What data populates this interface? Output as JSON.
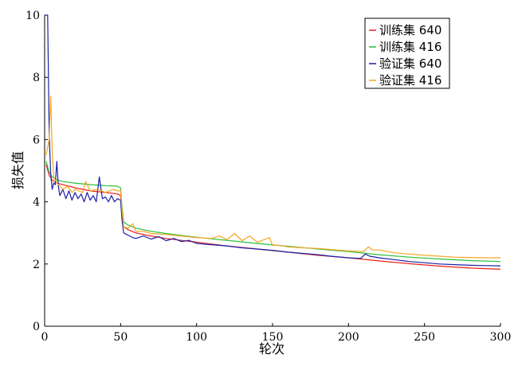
{
  "chart_data": {
    "type": "line",
    "xlabel": "轮次",
    "ylabel": "损失值",
    "xlim": [
      0,
      300
    ],
    "ylim": [
      0,
      10
    ],
    "x_ticks": [
      0,
      50,
      100,
      150,
      200,
      250,
      300
    ],
    "y_ticks": [
      0,
      2,
      4,
      6,
      8,
      10
    ],
    "grid": false,
    "legend_position": "top-right",
    "series": [
      {
        "name": "训练集 640",
        "color": "#e8221b",
        "points": [
          [
            1,
            5.2
          ],
          [
            3,
            4.85
          ],
          [
            5,
            4.7
          ],
          [
            8,
            4.6
          ],
          [
            12,
            4.55
          ],
          [
            20,
            4.45
          ],
          [
            30,
            4.35
          ],
          [
            40,
            4.3
          ],
          [
            48,
            4.25
          ],
          [
            50,
            4.2
          ],
          [
            51,
            3.6
          ],
          [
            52,
            3.2
          ],
          [
            55,
            3.1
          ],
          [
            60,
            3.0
          ],
          [
            70,
            2.9
          ],
          [
            80,
            2.82
          ],
          [
            90,
            2.76
          ],
          [
            100,
            2.7
          ],
          [
            120,
            2.58
          ],
          [
            140,
            2.48
          ],
          [
            160,
            2.38
          ],
          [
            180,
            2.28
          ],
          [
            200,
            2.2
          ],
          [
            220,
            2.1
          ],
          [
            240,
            2.01
          ],
          [
            260,
            1.93
          ],
          [
            280,
            1.87
          ],
          [
            300,
            1.83
          ]
        ]
      },
      {
        "name": "训练集 416",
        "color": "#2bbf3a",
        "points": [
          [
            1,
            5.3
          ],
          [
            3,
            4.95
          ],
          [
            5,
            4.8
          ],
          [
            8,
            4.7
          ],
          [
            12,
            4.65
          ],
          [
            20,
            4.6
          ],
          [
            30,
            4.55
          ],
          [
            40,
            4.52
          ],
          [
            48,
            4.5
          ],
          [
            50,
            4.45
          ],
          [
            51,
            3.8
          ],
          [
            52,
            3.35
          ],
          [
            55,
            3.25
          ],
          [
            60,
            3.15
          ],
          [
            70,
            3.05
          ],
          [
            80,
            2.98
          ],
          [
            90,
            2.92
          ],
          [
            100,
            2.86
          ],
          [
            120,
            2.76
          ],
          [
            140,
            2.66
          ],
          [
            160,
            2.57
          ],
          [
            180,
            2.48
          ],
          [
            200,
            2.4
          ],
          [
            220,
            2.3
          ],
          [
            240,
            2.22
          ],
          [
            260,
            2.16
          ],
          [
            280,
            2.11
          ],
          [
            300,
            2.08
          ]
        ]
      },
      {
        "name": "验证集 640",
        "color": "#1c1fa8",
        "points": [
          [
            1,
            10
          ],
          [
            2,
            10
          ],
          [
            3,
            6.2
          ],
          [
            4,
            4.9
          ],
          [
            5,
            4.4
          ],
          [
            6,
            4.6
          ],
          [
            7,
            4.55
          ],
          [
            8,
            5.3
          ],
          [
            9,
            4.5
          ],
          [
            10,
            4.2
          ],
          [
            12,
            4.4
          ],
          [
            14,
            4.1
          ],
          [
            16,
            4.35
          ],
          [
            18,
            4.05
          ],
          [
            20,
            4.3
          ],
          [
            22,
            4.1
          ],
          [
            24,
            4.25
          ],
          [
            26,
            4.0
          ],
          [
            28,
            4.3
          ],
          [
            30,
            4.05
          ],
          [
            32,
            4.2
          ],
          [
            34,
            4.0
          ],
          [
            36,
            4.8
          ],
          [
            38,
            4.1
          ],
          [
            40,
            4.15
          ],
          [
            42,
            4.0
          ],
          [
            44,
            4.2
          ],
          [
            46,
            4.0
          ],
          [
            48,
            4.1
          ],
          [
            50,
            4.05
          ],
          [
            51,
            3.4
          ],
          [
            52,
            3.0
          ],
          [
            54,
            2.95
          ],
          [
            56,
            2.9
          ],
          [
            58,
            2.85
          ],
          [
            60,
            2.82
          ],
          [
            65,
            2.9
          ],
          [
            70,
            2.8
          ],
          [
            75,
            2.88
          ],
          [
            80,
            2.75
          ],
          [
            85,
            2.82
          ],
          [
            90,
            2.72
          ],
          [
            95,
            2.76
          ],
          [
            100,
            2.66
          ],
          [
            110,
            2.62
          ],
          [
            120,
            2.58
          ],
          [
            130,
            2.52
          ],
          [
            140,
            2.48
          ],
          [
            150,
            2.44
          ],
          [
            160,
            2.38
          ],
          [
            170,
            2.34
          ],
          [
            180,
            2.3
          ],
          [
            190,
            2.24
          ],
          [
            200,
            2.2
          ],
          [
            208,
            2.18
          ],
          [
            211,
            2.32
          ],
          [
            214,
            2.25
          ],
          [
            220,
            2.2
          ],
          [
            230,
            2.14
          ],
          [
            240,
            2.08
          ],
          [
            250,
            2.04
          ],
          [
            260,
            2.0
          ],
          [
            270,
            1.98
          ],
          [
            280,
            1.96
          ],
          [
            290,
            1.95
          ],
          [
            300,
            1.94
          ]
        ]
      },
      {
        "name": "验证集 416",
        "color": "#f5a623",
        "points": [
          [
            1,
            5.5
          ],
          [
            3,
            6.0
          ],
          [
            4,
            7.4
          ],
          [
            5,
            5.6
          ],
          [
            6,
            4.8
          ],
          [
            8,
            4.6
          ],
          [
            10,
            4.5
          ],
          [
            12,
            4.4
          ],
          [
            15,
            4.5
          ],
          [
            18,
            4.3
          ],
          [
            20,
            4.4
          ],
          [
            25,
            4.3
          ],
          [
            27,
            4.65
          ],
          [
            30,
            4.35
          ],
          [
            35,
            4.4
          ],
          [
            40,
            4.3
          ],
          [
            45,
            4.4
          ],
          [
            48,
            4.35
          ],
          [
            50,
            4.35
          ],
          [
            51,
            3.7
          ],
          [
            52,
            3.2
          ],
          [
            55,
            3.15
          ],
          [
            58,
            3.3
          ],
          [
            60,
            3.05
          ],
          [
            65,
            3.05
          ],
          [
            70,
            2.98
          ],
          [
            80,
            2.95
          ],
          [
            90,
            2.9
          ],
          [
            100,
            2.85
          ],
          [
            110,
            2.82
          ],
          [
            115,
            2.9
          ],
          [
            120,
            2.78
          ],
          [
            125,
            2.98
          ],
          [
            130,
            2.75
          ],
          [
            135,
            2.9
          ],
          [
            140,
            2.7
          ],
          [
            148,
            2.85
          ],
          [
            150,
            2.6
          ],
          [
            155,
            2.6
          ],
          [
            160,
            2.55
          ],
          [
            170,
            2.52
          ],
          [
            180,
            2.5
          ],
          [
            190,
            2.46
          ],
          [
            200,
            2.42
          ],
          [
            210,
            2.4
          ],
          [
            213,
            2.55
          ],
          [
            216,
            2.45
          ],
          [
            220,
            2.45
          ],
          [
            230,
            2.36
          ],
          [
            240,
            2.32
          ],
          [
            250,
            2.28
          ],
          [
            260,
            2.25
          ],
          [
            270,
            2.22
          ],
          [
            280,
            2.21
          ],
          [
            290,
            2.2
          ],
          [
            300,
            2.2
          ]
        ]
      }
    ]
  }
}
